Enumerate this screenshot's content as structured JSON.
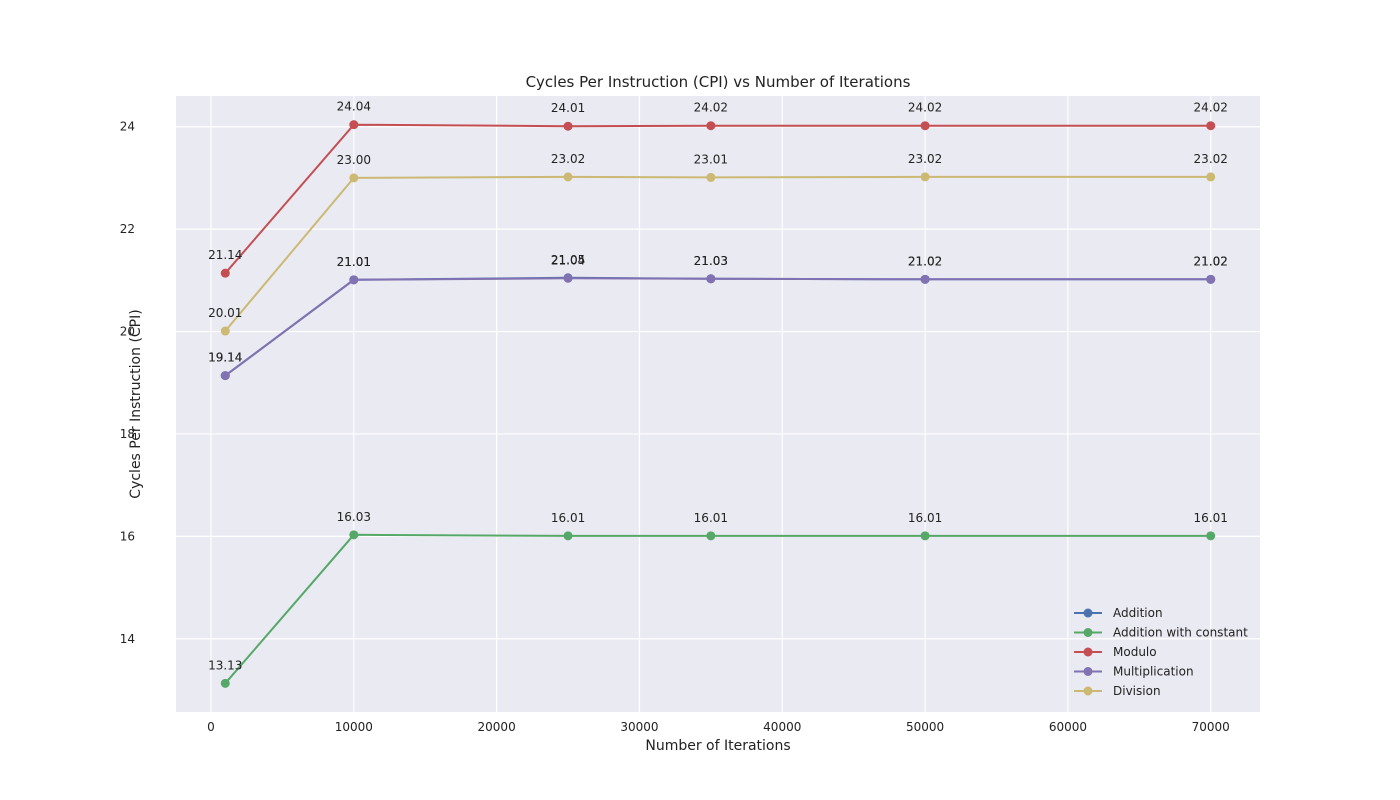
{
  "chart_data": {
    "type": "line",
    "title": "Cycles Per Instruction (CPI) vs Number of Iterations",
    "xlabel": "Number of Iterations",
    "ylabel": "Cycles Per Instruction (CPI)",
    "x": [
      1000,
      10000,
      25000,
      35000,
      50000,
      70000
    ],
    "xlim": [
      -2450,
      73450
    ],
    "ylim": [
      12.57,
      24.6
    ],
    "xticks": [
      0,
      10000,
      20000,
      30000,
      40000,
      50000,
      60000,
      70000
    ],
    "yticks": [
      14,
      16,
      18,
      20,
      22,
      24
    ],
    "grid": true,
    "legend_position": "lower right",
    "series": [
      {
        "name": "Addition",
        "color": "#4c72b0",
        "values": [
          19.14,
          21.01,
          21.05,
          21.03,
          21.02,
          21.02
        ],
        "labels": [
          "19.14",
          "21.01",
          "21.05",
          "21.03",
          "21.02",
          "21.02"
        ]
      },
      {
        "name": "Addition with constant",
        "color": "#55a868",
        "values": [
          13.13,
          16.03,
          16.01,
          16.01,
          16.01,
          16.01
        ],
        "labels": [
          "13.13",
          "16.03",
          "16.01",
          "16.01",
          "16.01",
          "16.01"
        ]
      },
      {
        "name": "Modulo",
        "color": "#c44e52",
        "values": [
          21.14,
          24.04,
          24.01,
          24.02,
          24.02,
          24.02
        ],
        "labels": [
          "21.14",
          "24.04",
          "24.01",
          "24.02",
          "24.02",
          "24.02"
        ]
      },
      {
        "name": "Multiplication",
        "color": "#8172b2",
        "values": [
          19.14,
          21.01,
          21.04,
          21.03,
          21.02,
          21.02
        ],
        "labels": [
          "19.14",
          "21.01",
          "21.04",
          "21.03",
          "21.02",
          "21.02"
        ]
      },
      {
        "name": "Division",
        "color": "#ccb974",
        "values": [
          20.01,
          23.0,
          23.02,
          23.01,
          23.02,
          23.02
        ],
        "labels": [
          "20.01",
          "23.00",
          "23.02",
          "23.01",
          "23.02",
          "23.02"
        ]
      }
    ],
    "colors": {
      "plot_background": "#eaeaf2",
      "grid": "#ffffff"
    }
  }
}
